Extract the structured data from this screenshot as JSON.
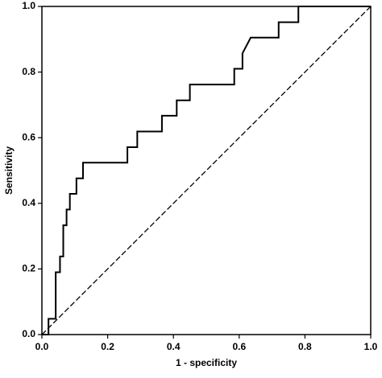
{
  "chart_data": {
    "type": "line",
    "x_label": "1 - specificity",
    "y_label": "Sensitivity",
    "x": [
      0,
      0.02,
      0.02,
      0.042,
      0.042,
      0.055,
      0.055,
      0.065,
      0.065,
      0.075,
      0.075,
      0.085,
      0.085,
      0.105,
      0.105,
      0.125,
      0.125,
      0.26,
      0.26,
      0.29,
      0.29,
      0.365,
      0.365,
      0.41,
      0.41,
      0.45,
      0.45,
      0.585,
      0.585,
      0.61,
      0.61,
      0.635,
      0.72,
      0.72,
      0.78,
      0.78,
      1
    ],
    "values": [
      0,
      0,
      0.048,
      0.048,
      0.19,
      0.19,
      0.238,
      0.238,
      0.333,
      0.333,
      0.381,
      0.381,
      0.429,
      0.429,
      0.476,
      0.476,
      0.524,
      0.524,
      0.571,
      0.571,
      0.619,
      0.619,
      0.667,
      0.667,
      0.714,
      0.714,
      0.762,
      0.762,
      0.81,
      0.81,
      0.857,
      0.905,
      0.905,
      0.952,
      0.952,
      1,
      1
    ],
    "color": "#000000",
    "xlim": [
      0,
      1
    ],
    "ylim": [
      0,
      1
    ],
    "xticks": [
      {
        "value": 0,
        "label": "0.0"
      },
      {
        "value": 0.2,
        "label": "0.2"
      },
      {
        "value": 0.4,
        "label": "0.4"
      },
      {
        "value": 0.6,
        "label": "0.6"
      },
      {
        "value": 0.8,
        "label": "0.8"
      },
      {
        "value": 1,
        "label": "1.0"
      }
    ],
    "yticks": [
      {
        "value": 0,
        "label": "0.0"
      },
      {
        "value": 0.2,
        "label": "0.2"
      },
      {
        "value": 0.4,
        "label": "0.4"
      },
      {
        "value": 0.6,
        "label": "0.6"
      },
      {
        "value": 0.8,
        "label": "0.8"
      },
      {
        "value": 1,
        "label": "1.0"
      }
    ],
    "grid": false
  }
}
